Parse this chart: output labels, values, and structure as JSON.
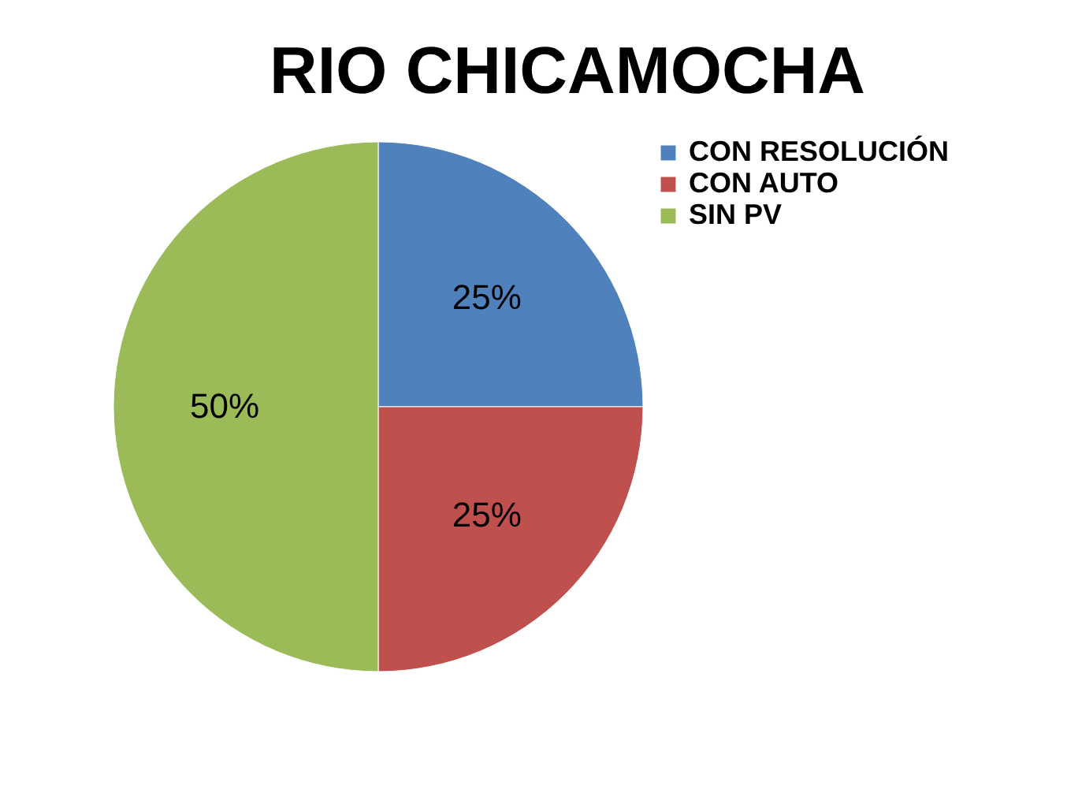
{
  "chart_data": {
    "type": "pie",
    "title": "RIO CHICAMOCHA",
    "categories": [
      "CON RESOLUCIÓN",
      "CON AUTO",
      "SIN PV"
    ],
    "values": [
      25,
      25,
      50
    ],
    "colors": [
      "#4f81bd",
      "#c0504d",
      "#9bbb59"
    ],
    "value_labels": [
      "25%",
      "25%",
      "50%"
    ],
    "legend": "right"
  }
}
